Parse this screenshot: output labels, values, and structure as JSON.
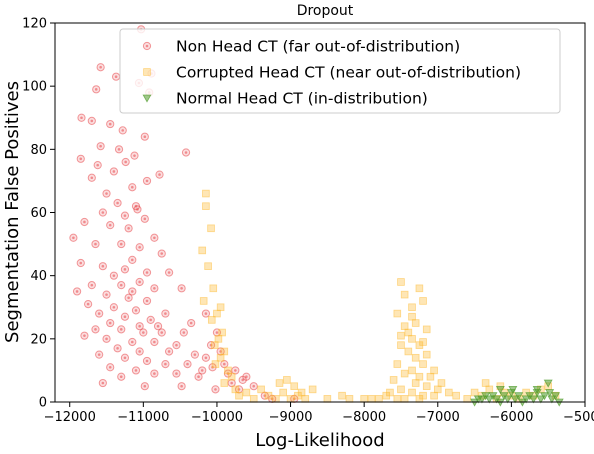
{
  "chart_data": {
    "type": "scatter",
    "title": "Dropout",
    "xlabel": "Log-Likelihood",
    "ylabel": "Segmentation False Positives",
    "xlim": [
      -12200,
      -5000
    ],
    "ylim": [
      0,
      120
    ],
    "xticks": [
      -12000,
      -11000,
      -10000,
      -9000,
      -8000,
      -7000,
      -6000,
      -5000
    ],
    "yticks": [
      0,
      20,
      40,
      60,
      80,
      100,
      120
    ],
    "grid": false,
    "legend": "top-right",
    "series": [
      {
        "name": "Non Head CT (far out-of-distribution)",
        "marker": "circle",
        "color": "#e8474b",
        "points": [
          [
            -11030,
            118
          ],
          [
            -11580,
            106
          ],
          [
            -10890,
            104
          ],
          [
            -11370,
            103
          ],
          [
            -11060,
            101
          ],
          [
            -11640,
            99
          ],
          [
            -10920,
            98
          ],
          [
            -11840,
            90
          ],
          [
            -11700,
            89
          ],
          [
            -11450,
            88
          ],
          [
            -11280,
            86
          ],
          [
            -10980,
            84
          ],
          [
            -11580,
            81
          ],
          [
            -11330,
            80
          ],
          [
            -10420,
            79
          ],
          [
            -11120,
            78
          ],
          [
            -11850,
            77
          ],
          [
            -11240,
            76
          ],
          [
            -11620,
            75
          ],
          [
            -11400,
            73
          ],
          [
            -11700,
            71
          ],
          [
            -10950,
            70
          ],
          [
            -10780,
            72
          ],
          [
            -11150,
            68
          ],
          [
            -11500,
            66
          ],
          [
            -11350,
            63
          ],
          [
            -11100,
            62
          ],
          [
            -11550,
            60
          ],
          [
            -11250,
            59
          ],
          [
            -11080,
            61
          ],
          [
            -10980,
            58
          ],
          [
            -11800,
            57
          ],
          [
            -11450,
            56
          ],
          [
            -11200,
            55
          ],
          [
            -10850,
            52
          ],
          [
            -11950,
            52
          ],
          [
            -11650,
            50
          ],
          [
            -11300,
            50
          ],
          [
            -11050,
            49
          ],
          [
            -10750,
            47
          ],
          [
            -11150,
            45
          ],
          [
            -11850,
            44
          ],
          [
            -11550,
            43
          ],
          [
            -11250,
            42
          ],
          [
            -10950,
            41
          ],
          [
            -10650,
            41
          ],
          [
            -11400,
            40
          ],
          [
            -11050,
            38
          ],
          [
            -11700,
            37
          ],
          [
            -11300,
            37
          ],
          [
            -10850,
            36
          ],
          [
            -11150,
            35
          ],
          [
            -10480,
            36
          ],
          [
            -11900,
            35
          ],
          [
            -11500,
            34
          ],
          [
            -11200,
            33
          ],
          [
            -10950,
            32
          ],
          [
            -11750,
            31
          ],
          [
            -11400,
            30
          ],
          [
            -11100,
            29
          ],
          [
            -10700,
            28
          ],
          [
            -11600,
            28
          ],
          [
            -11250,
            27
          ],
          [
            -10900,
            26
          ],
          [
            -11450,
            25
          ],
          [
            -11050,
            24
          ],
          [
            -10800,
            24
          ],
          [
            -10350,
            25
          ],
          [
            -11650,
            23
          ],
          [
            -11300,
            23
          ],
          [
            -11000,
            22
          ],
          [
            -10750,
            22
          ],
          [
            -10450,
            22
          ],
          [
            -11800,
            21
          ],
          [
            -11500,
            20
          ],
          [
            -11150,
            19
          ],
          [
            -10850,
            19
          ],
          [
            -10550,
            18
          ],
          [
            -11350,
            17
          ],
          [
            -11050,
            16
          ],
          [
            -10650,
            16
          ],
          [
            -10300,
            15
          ],
          [
            -11600,
            15
          ],
          [
            -11250,
            14
          ],
          [
            -10950,
            13
          ],
          [
            -10700,
            12
          ],
          [
            -10400,
            12
          ],
          [
            -11450,
            11
          ],
          [
            -11100,
            10
          ],
          [
            -10850,
            9
          ],
          [
            -10550,
            9
          ],
          [
            -10250,
            8
          ],
          [
            -11550,
            6
          ],
          [
            -10980,
            5
          ],
          [
            -10480,
            5
          ],
          [
            -11300,
            8
          ],
          [
            -10150,
            14
          ],
          [
            -10150,
            28
          ],
          [
            -10080,
            18
          ],
          [
            -10000,
            22
          ],
          [
            -9950,
            16
          ],
          [
            -9900,
            12
          ],
          [
            -9850,
            9
          ],
          [
            -9800,
            6
          ],
          [
            -9750,
            10
          ],
          [
            -9700,
            4
          ],
          [
            -10020,
            4
          ],
          [
            -10200,
            10
          ],
          [
            -9600,
            8
          ],
          [
            -9500,
            5
          ],
          [
            -9350,
            2
          ],
          [
            -9250,
            1
          ],
          [
            -8950,
            1
          ],
          [
            -9650,
            7
          ],
          [
            -10060,
            11
          ]
        ]
      },
      {
        "name": "Corrupted Head CT (near out-of-distribution)",
        "marker": "square",
        "color": "#fdb72a",
        "points": [
          [
            -10150,
            66
          ],
          [
            -10150,
            62
          ],
          [
            -10080,
            55
          ],
          [
            -10200,
            48
          ],
          [
            -10120,
            43
          ],
          [
            -10050,
            36
          ],
          [
            -10180,
            32
          ],
          [
            -9950,
            30
          ],
          [
            -10000,
            28
          ],
          [
            -10070,
            26
          ],
          [
            -9930,
            22
          ],
          [
            -9980,
            20
          ],
          [
            -10030,
            18
          ],
          [
            -9900,
            16
          ],
          [
            -9950,
            14
          ],
          [
            -10020,
            12
          ],
          [
            -9850,
            10
          ],
          [
            -9800,
            8
          ],
          [
            -9900,
            6
          ],
          [
            -9750,
            4
          ],
          [
            -9700,
            2
          ],
          [
            -9600,
            3
          ],
          [
            -9500,
            1
          ],
          [
            -9400,
            4
          ],
          [
            -9300,
            2
          ],
          [
            -9200,
            1
          ],
          [
            -9100,
            3
          ],
          [
            -9000,
            1
          ],
          [
            -8900,
            2
          ],
          [
            -8800,
            1
          ],
          [
            -8700,
            4
          ],
          [
            -9150,
            6
          ],
          [
            -9050,
            7
          ],
          [
            -8950,
            5
          ],
          [
            -8850,
            3
          ],
          [
            -7500,
            38
          ],
          [
            -7450,
            34
          ],
          [
            -7250,
            36
          ],
          [
            -7350,
            30
          ],
          [
            -7550,
            28
          ],
          [
            -7200,
            32
          ],
          [
            -7300,
            25
          ],
          [
            -7450,
            24
          ],
          [
            -7150,
            23
          ],
          [
            -7350,
            20
          ],
          [
            -7500,
            18
          ],
          [
            -7250,
            18
          ],
          [
            -7400,
            16
          ],
          [
            -7150,
            15
          ],
          [
            -7300,
            14
          ],
          [
            -7550,
            12
          ],
          [
            -7200,
            12
          ],
          [
            -7350,
            10
          ],
          [
            -7450,
            9
          ],
          [
            -7250,
            8
          ],
          [
            -7600,
            7
          ],
          [
            -7300,
            6
          ],
          [
            -7150,
            5
          ],
          [
            -7500,
            4
          ],
          [
            -7350,
            3
          ],
          [
            -7200,
            2
          ],
          [
            -7050,
            2
          ],
          [
            -7700,
            2
          ],
          [
            -7800,
            1
          ],
          [
            -7000,
            4
          ],
          [
            -7450,
            1
          ],
          [
            -7250,
            1
          ],
          [
            -7550,
            1
          ],
          [
            -7100,
            8
          ],
          [
            -7400,
            22
          ],
          [
            -7650,
            3
          ],
          [
            -7050,
            10
          ],
          [
            -6950,
            6
          ],
          [
            -6850,
            3
          ],
          [
            -6750,
            2
          ],
          [
            -6600,
            1
          ],
          [
            -6500,
            3
          ],
          [
            -6400,
            2
          ],
          [
            -6300,
            4
          ],
          [
            -6200,
            1
          ],
          [
            -6100,
            3
          ],
          [
            -6000,
            2
          ],
          [
            -5900,
            1
          ],
          [
            -5800,
            3
          ],
          [
            -5700,
            2
          ],
          [
            -5600,
            4
          ],
          [
            -5500,
            5
          ],
          [
            -5400,
            2
          ],
          [
            -6350,
            6
          ],
          [
            -6150,
            5
          ],
          [
            -8500,
            1
          ],
          [
            -8200,
            1
          ],
          [
            -8000,
            1
          ],
          [
            -7900,
            1
          ],
          [
            -8300,
            2
          ],
          [
            -7350,
            27
          ],
          [
            -7500,
            21
          ],
          [
            -7200,
            19
          ]
        ]
      },
      {
        "name": "Normal Head CT (in-distribution)",
        "marker": "triangle",
        "color": "#4f9a2a",
        "points": [
          [
            -6300,
            1
          ],
          [
            -6250,
            2
          ],
          [
            -6200,
            1
          ],
          [
            -6150,
            0
          ],
          [
            -6100,
            2
          ],
          [
            -6050,
            1
          ],
          [
            -6000,
            3
          ],
          [
            -5950,
            1
          ],
          [
            -5900,
            2
          ],
          [
            -5850,
            0
          ],
          [
            -5800,
            1
          ],
          [
            -5750,
            2
          ],
          [
            -5700,
            1
          ],
          [
            -5650,
            3
          ],
          [
            -5600,
            1
          ],
          [
            -5550,
            2
          ],
          [
            -5500,
            6
          ],
          [
            -5450,
            1
          ],
          [
            -5400,
            2
          ],
          [
            -5350,
            0
          ],
          [
            -6400,
            1
          ],
          [
            -6350,
            2
          ],
          [
            -6500,
            0
          ],
          [
            -6450,
            1
          ],
          [
            -6150,
            4
          ],
          [
            -5980,
            4
          ],
          [
            -5650,
            4
          ],
          [
            -5480,
            3
          ]
        ]
      }
    ]
  }
}
